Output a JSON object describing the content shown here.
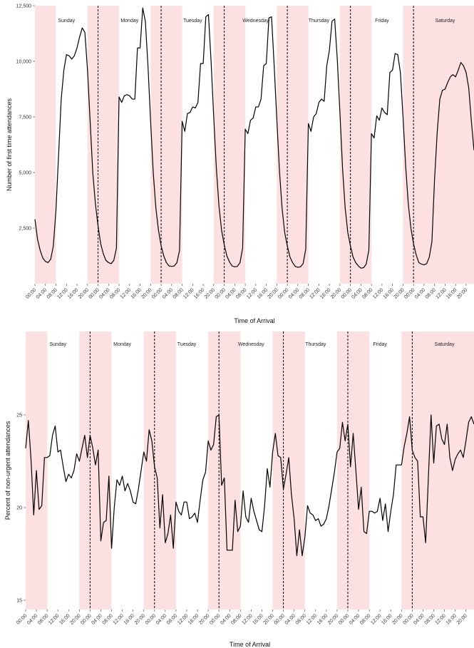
{
  "chart_data": [
    {
      "type": "line",
      "xlabel": "Time of Arrival",
      "ylabel": "Number of first time attendances",
      "ylim": [
        0,
        12500
      ],
      "yticks": [
        2500,
        5000,
        7500,
        10000,
        12500
      ],
      "ytick_labels": [
        "2,500",
        "5,000",
        "7,500",
        "10,000",
        "12,500"
      ],
      "days": [
        "Sunday",
        "Monday",
        "Tuesday",
        "Wednesday",
        "Thursday",
        "Friday",
        "Saturday"
      ],
      "shaded_hours": "20:00–08:00",
      "shade_color": "#fde0e2",
      "line_color": "#000000",
      "x_tick_labels": [
        "00:00",
        "04:00",
        "08:00",
        "12:00",
        "16:00",
        "20:00",
        "00:00",
        "04:00",
        "08:00",
        "12:00",
        "16:00",
        "20:00",
        "00:00",
        "04:00",
        "08:00",
        "12:00",
        "16:00",
        "20:00",
        "00:00",
        "04:00",
        "08:00",
        "12:00",
        "16:00",
        "20:00",
        "00:00",
        "04:00",
        "08:00",
        "12:00",
        "16:00",
        "20:00",
        "00:00",
        "04:00",
        "08:00",
        "12:00",
        "16:00",
        "20:00",
        "00:00",
        "04:00",
        "08:00",
        "12:00",
        "16:00",
        "20:00"
      ],
      "series": [
        {
          "values": [
            2900,
            2000,
            1500,
            1150,
            1000,
            950,
            1100,
            1700,
            3300,
            5800,
            8300,
            9600,
            10300,
            10250,
            10100,
            10250,
            10600,
            11100,
            11500,
            11300,
            9600,
            7300,
            5000,
            3600,
            2600,
            1800,
            1350,
            1050,
            950,
            900,
            1050,
            1600,
            8400,
            8150,
            8450,
            8500,
            8450,
            8300,
            8300,
            10600,
            10600,
            12400,
            11800,
            9800,
            7300,
            5000,
            3400,
            2400,
            1700,
            1250,
            950,
            800,
            780,
            800,
            950,
            1500,
            7300,
            6850,
            7650,
            7700,
            7950,
            7900,
            8150,
            9900,
            9900,
            12000,
            12100,
            10000,
            7500,
            5200,
            3500,
            2400,
            1750,
            1250,
            980,
            800,
            760,
            780,
            950,
            1600,
            6950,
            6750,
            7350,
            7450,
            7950,
            7950,
            8300,
            9800,
            9900,
            11950,
            12000,
            9800,
            7400,
            5100,
            3400,
            2300,
            1700,
            1200,
            950,
            780,
            740,
            760,
            900,
            1550,
            7200,
            6850,
            7500,
            7650,
            8150,
            8300,
            8200,
            9800,
            10500,
            11800,
            11900,
            10100,
            7700,
            5200,
            3400,
            2300,
            1700,
            1200,
            950,
            800,
            700,
            720,
            880,
            1500,
            6750,
            6550,
            7550,
            7350,
            7900,
            7700,
            7600,
            9500,
            9600,
            10350,
            10300,
            9500,
            7500,
            5300,
            3600,
            2500,
            1800,
            1300,
            950,
            880,
            850,
            900,
            1200,
            1900,
            4700,
            6800,
            8300,
            8700,
            8750,
            9050,
            9300,
            9400,
            9300,
            9600,
            9950,
            9800,
            9500,
            8800,
            7300,
            6000
          ]
        }
      ]
    },
    {
      "type": "line",
      "xlabel": "Time of Arrival",
      "ylabel": "Percent of non-urgent attendances",
      "ylim": [
        14.5,
        29.5
      ],
      "yticks": [
        15,
        20,
        25
      ],
      "ytick_labels": [
        "15",
        "20",
        "25"
      ],
      "days": [
        "Sunday",
        "Monday",
        "Tuesday",
        "Wednesday",
        "Thursday",
        "Friday",
        "Saturday"
      ],
      "shaded_hours": "20:00–08:00",
      "shade_color": "#fde0e2",
      "line_color": "#000000",
      "x_tick_labels": [
        "00:00",
        "04:00",
        "08:00",
        "12:00",
        "16:00",
        "20:00",
        "00:00",
        "04:00",
        "08:00",
        "12:00",
        "16:00",
        "20:00",
        "00:00",
        "04:00",
        "08:00",
        "12:00",
        "16:00",
        "20:00",
        "00:00",
        "04:00",
        "08:00",
        "12:00",
        "16:00",
        "20:00",
        "00:00",
        "04:00",
        "08:00",
        "12:00",
        "16:00",
        "20:00",
        "00:00",
        "04:00",
        "08:00",
        "12:00",
        "16:00",
        "20:00",
        "00:00",
        "04:00",
        "08:00",
        "12:00",
        "16:00",
        "20:00"
      ],
      "series": [
        {
          "values": [
            23.2,
            24.7,
            22.6,
            19.6,
            22.0,
            19.9,
            20.1,
            22.7,
            22.7,
            22.8,
            23.9,
            24.4,
            23.0,
            23.1,
            22.2,
            21.4,
            21.8,
            21.6,
            22.0,
            22.9,
            22.5,
            23.2,
            23.9,
            22.7,
            23.9,
            23.2,
            22.3,
            23.1,
            18.2,
            19.2,
            19.3,
            21.7,
            17.8,
            20.0,
            21.5,
            21.2,
            21.7,
            20.9,
            21.3,
            20.9,
            20.3,
            20.2,
            21.0,
            22.0,
            23.0,
            22.5,
            24.2,
            23.6,
            22.2,
            21.6,
            18.9,
            20.7,
            18.1,
            18.6,
            19.6,
            17.8,
            20.3,
            19.8,
            19.6,
            20.3,
            20.3,
            19.4,
            19.5,
            19.7,
            19.2,
            20.4,
            21.5,
            21.9,
            23.6,
            23.1,
            23.4,
            24.9,
            25.0,
            21.2,
            21.6,
            17.7,
            17.7,
            17.7,
            20.4,
            18.7,
            19.0,
            20.9,
            19.5,
            19.2,
            20.5,
            19.8,
            19.3,
            18.8,
            18.7,
            20.1,
            22.1,
            21.1,
            23.0,
            24.0,
            22.8,
            22.7,
            21.0,
            21.8,
            22.7,
            20.7,
            19.4,
            17.4,
            18.8,
            17.4,
            18.4,
            20.1,
            19.7,
            19.6,
            19.3,
            19.4,
            19.0,
            19.1,
            19.4,
            20.1,
            21.0,
            21.9,
            23.0,
            23.2,
            24.6,
            23.6,
            24.5,
            22.2,
            24.0,
            22.0,
            19.9,
            21.1,
            18.7,
            18.6,
            19.8,
            19.8,
            19.7,
            19.8,
            20.5,
            19.3,
            20.2,
            18.7,
            19.8,
            20.7,
            22.3,
            22.3,
            22.3,
            23.3,
            24.0,
            24.9,
            23.1,
            22.7,
            22.5,
            19.5,
            19.5,
            18.1,
            21.6,
            25.0,
            22.4,
            24.4,
            24.5,
            23.7,
            23.4,
            24.5,
            22.7,
            22.0,
            22.6,
            22.9,
            23.1,
            22.7,
            23.6,
            24.6,
            24.9,
            24.5
          ]
        }
      ]
    }
  ]
}
